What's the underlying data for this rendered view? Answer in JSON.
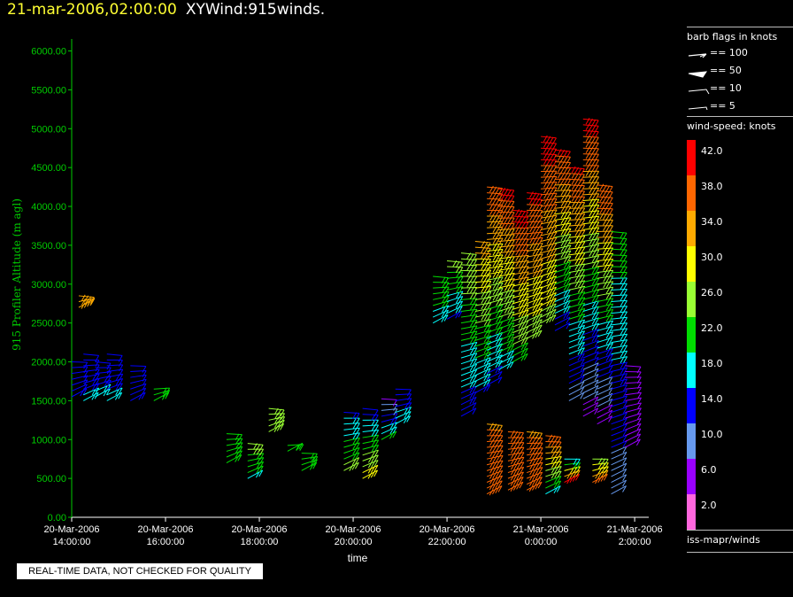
{
  "title": {
    "date": "21-mar-2006,02:00:00",
    "name": "XYWind:915winds."
  },
  "legend": {
    "barb_header": "barb flags in knots",
    "barb_flags": [
      "== 100",
      "== 50",
      "== 10",
      "== 5"
    ],
    "speed_header": "wind-speed: knots",
    "colorbar": [
      {
        "label": "42.0",
        "color": "#ff0000"
      },
      {
        "label": "38.0",
        "color": "#ff6600"
      },
      {
        "label": "34.0",
        "color": "#ffaa00"
      },
      {
        "label": "30.0",
        "color": "#ffff00"
      },
      {
        "label": "26.0",
        "color": "#99ff33"
      },
      {
        "label": "22.0",
        "color": "#00dd00"
      },
      {
        "label": "18.0",
        "color": "#00ffff"
      },
      {
        "label": "14.0",
        "color": "#0000ff"
      },
      {
        "label": "10.0",
        "color": "#6699ee"
      },
      {
        "label": "6.0",
        "color": "#9900ff"
      },
      {
        "label": "2.0",
        "color": "#ff66dd"
      }
    ],
    "source": "iss-mapr/winds"
  },
  "quality_notice": "REAL-TIME DATA, NOT CHECKED FOR QUALITY",
  "chart_data": {
    "type": "scatter",
    "title": "21-mar-2006,02:00:00  XYWind:915winds.",
    "xlabel": "time",
    "ylabel": "915 Profiler Altitude (m agl)",
    "x_range_hours": [
      0,
      12.3
    ],
    "ylim": [
      0,
      6200
    ],
    "x_ticks": [
      {
        "date": "20-Mar-2006",
        "time": "14:00:00",
        "h": 0
      },
      {
        "date": "20-Mar-2006",
        "time": "16:00:00",
        "h": 2
      },
      {
        "date": "20-Mar-2006",
        "time": "18:00:00",
        "h": 4
      },
      {
        "date": "20-Mar-2006",
        "time": "20:00:00",
        "h": 6
      },
      {
        "date": "20-Mar-2006",
        "time": "22:00:00",
        "h": 8
      },
      {
        "date": "21-Mar-2006",
        "time": "0:00:00",
        "h": 10
      },
      {
        "date": "21-Mar-2006",
        "time": "2:00:00",
        "h": 12
      }
    ],
    "y_ticks": [
      "0.00",
      "500.00",
      "1000.00",
      "1500.00",
      "2000.00",
      "2500.00",
      "3000.00",
      "3500.00",
      "4000.00",
      "4500.00",
      "5000.00",
      "5500.00",
      "6000.00"
    ],
    "axis_color": "#00cc00",
    "profiles": [
      {
        "t": 0.0,
        "z0": 1550,
        "z1": 2050,
        "s0": 15,
        "s1": 13
      },
      {
        "t": 0.25,
        "z0": 1500,
        "z1": 2100,
        "s0": 17,
        "s1": 13
      },
      {
        "t": 0.5,
        "z0": 1550,
        "z1": 2000,
        "s0": 17,
        "s1": 13
      },
      {
        "t": 0.75,
        "z0": 1500,
        "z1": 2100,
        "s0": 17,
        "s1": 13
      },
      {
        "t": 0.15,
        "z0": 2700,
        "z1": 2850,
        "s0": 36,
        "s1": 36
      },
      {
        "t": 1.25,
        "z0": 1500,
        "z1": 2000,
        "s0": 15,
        "s1": 13
      },
      {
        "t": 1.75,
        "z0": 1500,
        "z1": 1700,
        "s0": 23,
        "s1": 23
      },
      {
        "t": 3.3,
        "z0": 700,
        "z1": 1100,
        "s0": 24,
        "s1": 24
      },
      {
        "t": 3.75,
        "z0": 500,
        "z1": 950,
        "s0": 20,
        "s1": 26
      },
      {
        "t": 4.2,
        "z0": 1100,
        "z1": 1400,
        "s0": 27,
        "s1": 27
      },
      {
        "t": 4.6,
        "z0": 850,
        "z1": 950,
        "s0": 24,
        "s1": 24
      },
      {
        "t": 4.9,
        "z0": 600,
        "z1": 850,
        "s0": 24,
        "s1": 24
      },
      {
        "t": 5.8,
        "z0": 600,
        "z1": 1400,
        "s0": 26,
        "s1": 15
      },
      {
        "t": 6.2,
        "z0": 500,
        "z1": 1400,
        "s0": 30,
        "s1": 14
      },
      {
        "t": 6.6,
        "z0": 1000,
        "z1": 1550,
        "s0": 22,
        "s1": 7
      },
      {
        "t": 6.9,
        "z0": 1200,
        "z1": 1700,
        "s0": 18,
        "s1": 12
      },
      {
        "t": 7.7,
        "z0": 2500,
        "z1": 3100,
        "s0": 18,
        "s1": 24
      },
      {
        "t": 8.0,
        "z0": 2550,
        "z1": 3300,
        "s0": 15,
        "s1": 26
      },
      {
        "t": 8.3,
        "z0": 1300,
        "z1": 3400,
        "s0": 14,
        "s1": 28
      },
      {
        "t": 8.6,
        "z0": 1600,
        "z1": 3550,
        "s0": 16,
        "s1": 34
      },
      {
        "t": 8.85,
        "z0": 1700,
        "z1": 4300,
        "s0": 14,
        "s1": 40
      },
      {
        "t": 9.1,
        "z0": 1900,
        "z1": 4250,
        "s0": 18,
        "s1": 41
      },
      {
        "t": 9.4,
        "z0": 2000,
        "z1": 3950,
        "s0": 22,
        "s1": 42
      },
      {
        "t": 9.7,
        "z0": 2300,
        "z1": 4200,
        "s0": 26,
        "s1": 41
      },
      {
        "t": 10.0,
        "z0": 2500,
        "z1": 4900,
        "s0": 27,
        "s1": 42
      },
      {
        "t": 10.3,
        "z0": 2400,
        "z1": 4750,
        "s0": 14,
        "s1": 41
      },
      {
        "t": 10.6,
        "z0": 1500,
        "z1": 4550,
        "s0": 10,
        "s1": 41
      },
      {
        "t": 10.9,
        "z0": 1300,
        "z1": 5150,
        "s0": 6,
        "s1": 42
      },
      {
        "t": 11.2,
        "z0": 1200,
        "z1": 4300,
        "s0": 6,
        "s1": 40
      },
      {
        "t": 11.5,
        "z0": 300,
        "z1": 3700,
        "s0": 10,
        "s1": 22
      },
      {
        "t": 11.8,
        "z0": 900,
        "z1": 2000,
        "s0": 6,
        "s1": 7
      },
      {
        "t": 8.85,
        "z0": 300,
        "z1": 1200,
        "s0": 38,
        "s1": 36
      },
      {
        "t": 9.3,
        "z0": 350,
        "z1": 1150,
        "s0": 38,
        "s1": 36
      },
      {
        "t": 9.7,
        "z0": 350,
        "z1": 1100,
        "s0": 37,
        "s1": 36
      },
      {
        "t": 10.1,
        "z0": 300,
        "z1": 1050,
        "s0": 20,
        "s1": 38
      },
      {
        "t": 10.5,
        "z0": 450,
        "z1": 800,
        "s0": 42,
        "s1": 14
      },
      {
        "t": 11.1,
        "z0": 450,
        "z1": 800,
        "s0": 38,
        "s1": 24
      }
    ]
  }
}
